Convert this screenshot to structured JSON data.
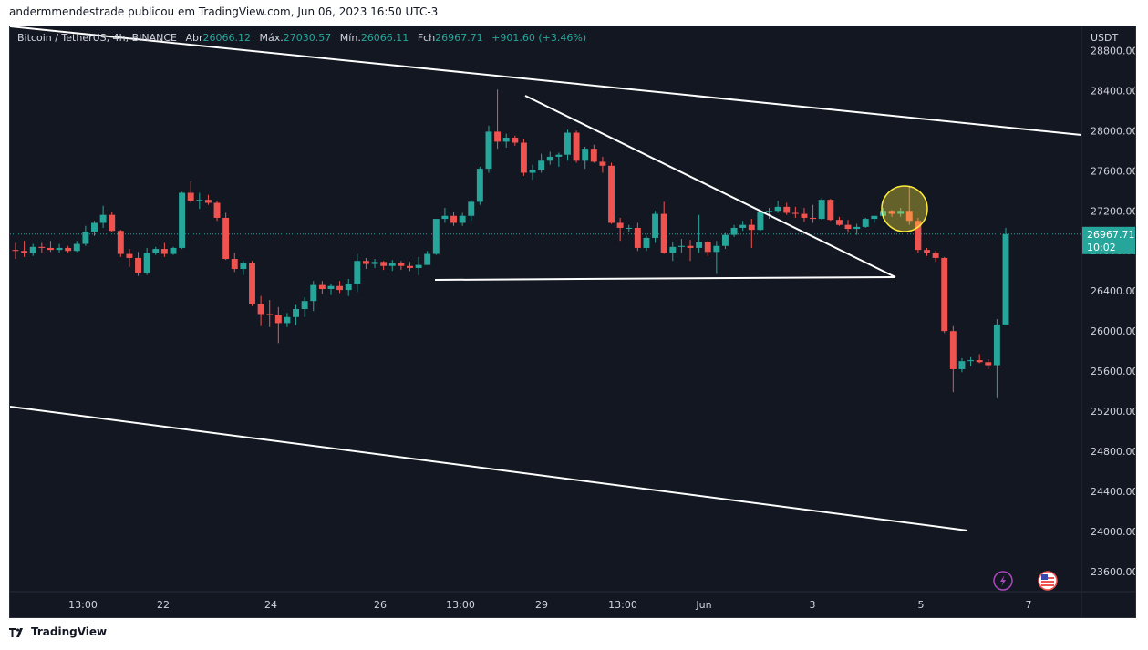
{
  "header": {
    "text": "andermmendestrade publicou em TradingView.com, Jun 06, 2023 16:50 UTC-3"
  },
  "legend": {
    "symbol": "Bitcoin / TetherUS, 4h, BINANCE",
    "open_label": "Abr",
    "open_value": "26066.12",
    "high_label": "Máx.",
    "high_value": "27030.57",
    "low_label": "Mín.",
    "low_value": "26066.11",
    "close_label": "Fch",
    "close_value": "26967.71",
    "change": "+901.60 (+3.46%)"
  },
  "price_tag": {
    "price": "26967.71",
    "countdown": "10:02"
  },
  "footer": {
    "brand": "TradingView"
  },
  "colors": {
    "background": "#131722",
    "up": "#26a69a",
    "down": "#ef5350",
    "price_line": "#26a69a",
    "drawing": "#ffffff",
    "highlight": "#ffeb3b",
    "axis_text": "#d1d4dc"
  },
  "chart_data": {
    "type": "candlestick",
    "currency_label": "USDT",
    "y_ticks": [
      28800,
      28400,
      28000,
      27600,
      27200,
      26800,
      26400,
      26000,
      25600,
      25200,
      24800,
      24400,
      24000,
      23600
    ],
    "ylim": [
      23400,
      29040
    ],
    "x_ticks": [
      "13:00",
      "22",
      "24",
      "26",
      "13:00",
      "29",
      "13:00",
      "Jun",
      "3",
      "5",
      "7"
    ],
    "last_price": 26967.71,
    "candles": [
      {
        "o": 26810,
        "h": 26880,
        "l": 26720,
        "c": 26800
      },
      {
        "o": 26800,
        "h": 26900,
        "l": 26740,
        "c": 26780
      },
      {
        "o": 26780,
        "h": 26870,
        "l": 26750,
        "c": 26840
      },
      {
        "o": 26840,
        "h": 26880,
        "l": 26780,
        "c": 26830
      },
      {
        "o": 26830,
        "h": 26900,
        "l": 26790,
        "c": 26810
      },
      {
        "o": 26810,
        "h": 26870,
        "l": 26780,
        "c": 26830
      },
      {
        "o": 26830,
        "h": 26850,
        "l": 26780,
        "c": 26800
      },
      {
        "o": 26800,
        "h": 26900,
        "l": 26790,
        "c": 26870
      },
      {
        "o": 26870,
        "h": 27050,
        "l": 26850,
        "c": 26990
      },
      {
        "o": 26990,
        "h": 27100,
        "l": 26950,
        "c": 27080
      },
      {
        "o": 27080,
        "h": 27250,
        "l": 27030,
        "c": 27160
      },
      {
        "o": 27160,
        "h": 27190,
        "l": 26990,
        "c": 27000
      },
      {
        "o": 27000,
        "h": 27010,
        "l": 26740,
        "c": 26770
      },
      {
        "o": 26770,
        "h": 26820,
        "l": 26640,
        "c": 26730
      },
      {
        "o": 26730,
        "h": 26790,
        "l": 26550,
        "c": 26580
      },
      {
        "o": 26580,
        "h": 26830,
        "l": 26560,
        "c": 26780
      },
      {
        "o": 26780,
        "h": 26840,
        "l": 26760,
        "c": 26820
      },
      {
        "o": 26820,
        "h": 26880,
        "l": 26740,
        "c": 26770
      },
      {
        "o": 26770,
        "h": 26840,
        "l": 26760,
        "c": 26830
      },
      {
        "o": 26830,
        "h": 27390,
        "l": 26820,
        "c": 27380
      },
      {
        "o": 27380,
        "h": 27490,
        "l": 27280,
        "c": 27300
      },
      {
        "o": 27300,
        "h": 27380,
        "l": 27220,
        "c": 27310
      },
      {
        "o": 27310,
        "h": 27360,
        "l": 27260,
        "c": 27280
      },
      {
        "o": 27280,
        "h": 27300,
        "l": 27100,
        "c": 27130
      },
      {
        "o": 27130,
        "h": 27180,
        "l": 26710,
        "c": 26720
      },
      {
        "o": 26720,
        "h": 26780,
        "l": 26590,
        "c": 26620
      },
      {
        "o": 26620,
        "h": 26700,
        "l": 26560,
        "c": 26680
      },
      {
        "o": 26680,
        "h": 26700,
        "l": 26250,
        "c": 26270
      },
      {
        "o": 26270,
        "h": 26350,
        "l": 26050,
        "c": 26170
      },
      {
        "o": 26170,
        "h": 26310,
        "l": 26040,
        "c": 26160
      },
      {
        "o": 26160,
        "h": 26240,
        "l": 25880,
        "c": 26080
      },
      {
        "o": 26080,
        "h": 26180,
        "l": 26040,
        "c": 26140
      },
      {
        "o": 26140,
        "h": 26260,
        "l": 26060,
        "c": 26220
      },
      {
        "o": 26220,
        "h": 26340,
        "l": 26140,
        "c": 26300
      },
      {
        "o": 26300,
        "h": 26500,
        "l": 26200,
        "c": 26460
      },
      {
        "o": 26460,
        "h": 26500,
        "l": 26370,
        "c": 26420
      },
      {
        "o": 26420,
        "h": 26470,
        "l": 26360,
        "c": 26450
      },
      {
        "o": 26450,
        "h": 26500,
        "l": 26380,
        "c": 26410
      },
      {
        "o": 26410,
        "h": 26520,
        "l": 26350,
        "c": 26470
      },
      {
        "o": 26470,
        "h": 26770,
        "l": 26390,
        "c": 26700
      },
      {
        "o": 26700,
        "h": 26730,
        "l": 26620,
        "c": 26670
      },
      {
        "o": 26670,
        "h": 26720,
        "l": 26630,
        "c": 26690
      },
      {
        "o": 26690,
        "h": 26700,
        "l": 26610,
        "c": 26650
      },
      {
        "o": 26650,
        "h": 26710,
        "l": 26600,
        "c": 26680
      },
      {
        "o": 26680,
        "h": 26700,
        "l": 26610,
        "c": 26650
      },
      {
        "o": 26650,
        "h": 26690,
        "l": 26600,
        "c": 26630
      },
      {
        "o": 26630,
        "h": 26740,
        "l": 26560,
        "c": 26660
      },
      {
        "o": 26660,
        "h": 26800,
        "l": 26660,
        "c": 26770
      },
      {
        "o": 26770,
        "h": 27100,
        "l": 26760,
        "c": 27120
      },
      {
        "o": 27120,
        "h": 27230,
        "l": 27080,
        "c": 27150
      },
      {
        "o": 27150,
        "h": 27190,
        "l": 27050,
        "c": 27080
      },
      {
        "o": 27080,
        "h": 27180,
        "l": 27050,
        "c": 27150
      },
      {
        "o": 27150,
        "h": 27310,
        "l": 27100,
        "c": 27290
      },
      {
        "o": 27290,
        "h": 27640,
        "l": 27260,
        "c": 27620
      },
      {
        "o": 27620,
        "h": 28050,
        "l": 27580,
        "c": 27990
      },
      {
        "o": 27990,
        "h": 28410,
        "l": 27820,
        "c": 27890
      },
      {
        "o": 27890,
        "h": 27970,
        "l": 27830,
        "c": 27930
      },
      {
        "o": 27930,
        "h": 27950,
        "l": 27850,
        "c": 27880
      },
      {
        "o": 27880,
        "h": 27920,
        "l": 27550,
        "c": 27580
      },
      {
        "o": 27580,
        "h": 27660,
        "l": 27510,
        "c": 27610
      },
      {
        "o": 27610,
        "h": 27770,
        "l": 27580,
        "c": 27700
      },
      {
        "o": 27700,
        "h": 27790,
        "l": 27660,
        "c": 27740
      },
      {
        "o": 27740,
        "h": 27780,
        "l": 27640,
        "c": 27760
      },
      {
        "o": 27760,
        "h": 28010,
        "l": 27700,
        "c": 27980
      },
      {
        "o": 27980,
        "h": 28000,
        "l": 27680,
        "c": 27700
      },
      {
        "o": 27700,
        "h": 27840,
        "l": 27620,
        "c": 27820
      },
      {
        "o": 27820,
        "h": 27860,
        "l": 27680,
        "c": 27690
      },
      {
        "o": 27690,
        "h": 27740,
        "l": 27580,
        "c": 27650
      },
      {
        "o": 27650,
        "h": 27680,
        "l": 27070,
        "c": 27080
      },
      {
        "o": 27080,
        "h": 27130,
        "l": 26900,
        "c": 27030
      },
      {
        "o": 27030,
        "h": 27060,
        "l": 26990,
        "c": 27030
      },
      {
        "o": 27030,
        "h": 27080,
        "l": 26800,
        "c": 26830
      },
      {
        "o": 26830,
        "h": 26950,
        "l": 26800,
        "c": 26930
      },
      {
        "o": 26930,
        "h": 27200,
        "l": 26880,
        "c": 27170
      },
      {
        "o": 27170,
        "h": 27290,
        "l": 26770,
        "c": 26780
      },
      {
        "o": 26780,
        "h": 26890,
        "l": 26700,
        "c": 26840
      },
      {
        "o": 26840,
        "h": 26920,
        "l": 26780,
        "c": 26850
      },
      {
        "o": 26850,
        "h": 26910,
        "l": 26700,
        "c": 26830
      },
      {
        "o": 26830,
        "h": 27160,
        "l": 26780,
        "c": 26890
      },
      {
        "o": 26890,
        "h": 26900,
        "l": 26750,
        "c": 26790
      },
      {
        "o": 26790,
        "h": 26900,
        "l": 26570,
        "c": 26850
      },
      {
        "o": 26850,
        "h": 26980,
        "l": 26820,
        "c": 26960
      },
      {
        "o": 26960,
        "h": 27060,
        "l": 26940,
        "c": 27030
      },
      {
        "o": 27030,
        "h": 27100,
        "l": 27000,
        "c": 27060
      },
      {
        "o": 27060,
        "h": 27120,
        "l": 26830,
        "c": 27010
      },
      {
        "o": 27010,
        "h": 27210,
        "l": 27000,
        "c": 27190
      },
      {
        "o": 27190,
        "h": 27230,
        "l": 27120,
        "c": 27200
      },
      {
        "o": 27200,
        "h": 27300,
        "l": 27180,
        "c": 27240
      },
      {
        "o": 27240,
        "h": 27280,
        "l": 27160,
        "c": 27180
      },
      {
        "o": 27180,
        "h": 27240,
        "l": 27130,
        "c": 27170
      },
      {
        "o": 27170,
        "h": 27230,
        "l": 27090,
        "c": 27130
      },
      {
        "o": 27130,
        "h": 27260,
        "l": 27080,
        "c": 27120
      },
      {
        "o": 27120,
        "h": 27330,
        "l": 27110,
        "c": 27310
      },
      {
        "o": 27310,
        "h": 27320,
        "l": 27100,
        "c": 27110
      },
      {
        "o": 27110,
        "h": 27140,
        "l": 27050,
        "c": 27060
      },
      {
        "o": 27060,
        "h": 27110,
        "l": 26980,
        "c": 27020
      },
      {
        "o": 27020,
        "h": 27070,
        "l": 26960,
        "c": 27040
      },
      {
        "o": 27040,
        "h": 27130,
        "l": 27030,
        "c": 27120
      },
      {
        "o": 27120,
        "h": 27150,
        "l": 27080,
        "c": 27150
      },
      {
        "o": 27150,
        "h": 27230,
        "l": 27120,
        "c": 27200
      },
      {
        "o": 27200,
        "h": 27210,
        "l": 27140,
        "c": 27170
      },
      {
        "o": 27170,
        "h": 27230,
        "l": 27140,
        "c": 27200
      },
      {
        "o": 27200,
        "h": 27450,
        "l": 27060,
        "c": 27100
      },
      {
        "o": 27100,
        "h": 27130,
        "l": 26780,
        "c": 26810
      },
      {
        "o": 26810,
        "h": 26830,
        "l": 26750,
        "c": 26780
      },
      {
        "o": 26780,
        "h": 26800,
        "l": 26690,
        "c": 26730
      },
      {
        "o": 26730,
        "h": 26740,
        "l": 25980,
        "c": 26000
      },
      {
        "o": 26000,
        "h": 26050,
        "l": 25390,
        "c": 25620
      },
      {
        "o": 25620,
        "h": 25730,
        "l": 25590,
        "c": 25700
      },
      {
        "o": 25700,
        "h": 25740,
        "l": 25650,
        "c": 25710
      },
      {
        "o": 25710,
        "h": 25770,
        "l": 25680,
        "c": 25690
      },
      {
        "o": 25690,
        "h": 25720,
        "l": 25620,
        "c": 25660
      },
      {
        "o": 25660,
        "h": 26120,
        "l": 25330,
        "c": 26066.12
      },
      {
        "o": 26066.12,
        "h": 27030.57,
        "l": 26066.11,
        "c": 26967.71
      }
    ]
  }
}
